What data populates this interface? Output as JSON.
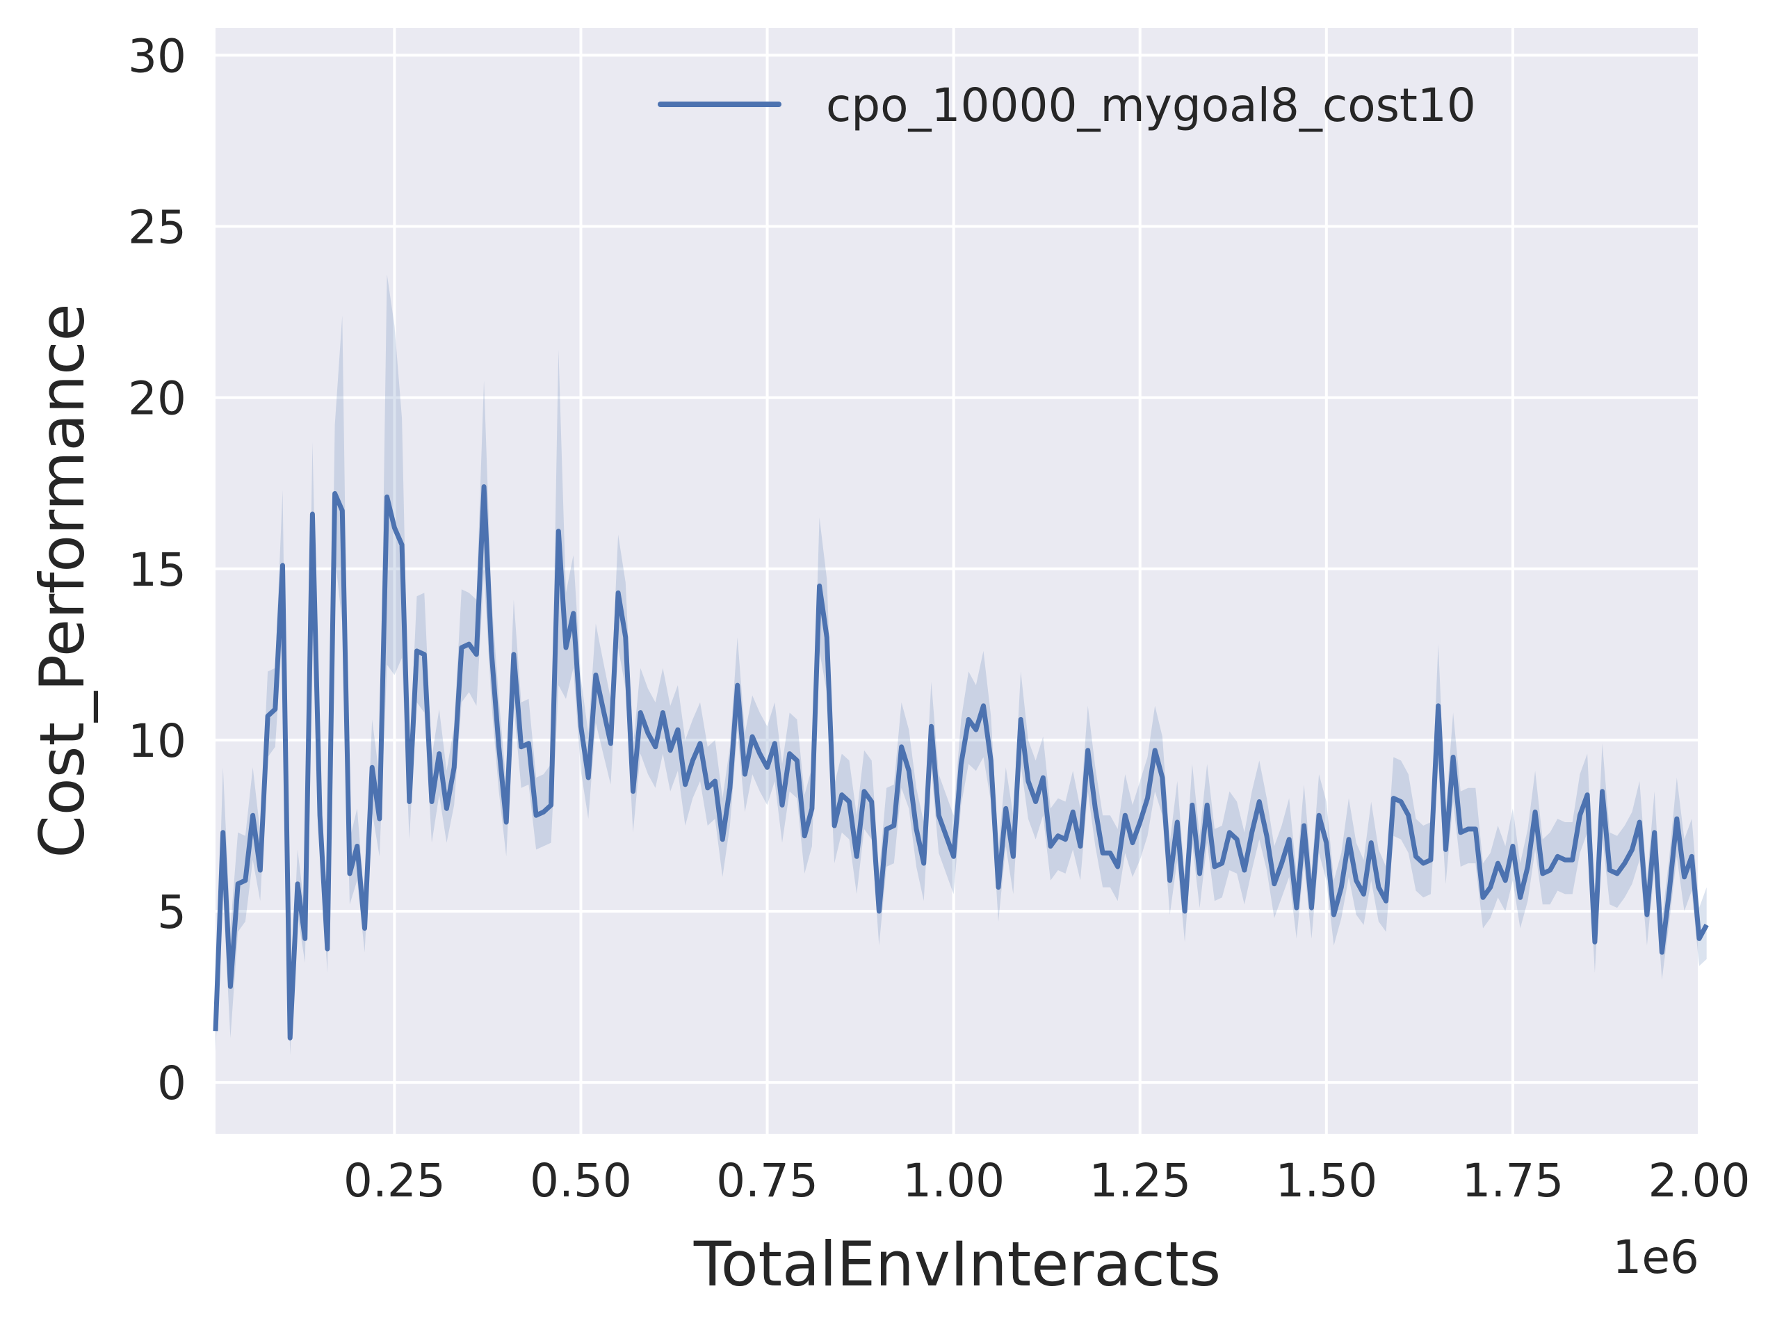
{
  "chart_data": {
    "type": "line",
    "title": "",
    "xlabel": "TotalEnvInteracts",
    "ylabel": "Cost_Performance",
    "x_offset_label": "1e6",
    "xlim": [
      10000,
      2000000
    ],
    "ylim": [
      -1.5,
      30.8
    ],
    "x_ticks": [
      0.25,
      0.5,
      0.75,
      1.0,
      1.25,
      1.5,
      1.75,
      2.0
    ],
    "x_tick_labels": [
      "0.25",
      "0.50",
      "0.75",
      "1.00",
      "1.25",
      "1.50",
      "1.75",
      "2.00"
    ],
    "y_ticks": [
      0,
      5,
      10,
      15,
      20,
      25,
      30
    ],
    "y_tick_labels": [
      "0",
      "5",
      "10",
      "15",
      "20",
      "25",
      "30"
    ],
    "grid": true,
    "legend_position": "top-right",
    "colors": {
      "line": "#4c72b0",
      "band": "#4c72b0",
      "background": "#eaeaf2",
      "grid": "#ffffff"
    },
    "series": [
      {
        "name": "cpo_10000_mygoal8_cost10",
        "x_step": 10000,
        "x_start": 10000,
        "values": [
          1.5,
          7.3,
          2.8,
          5.8,
          5.9,
          7.8,
          6.2,
          10.7,
          10.9,
          15.1,
          1.3,
          5.8,
          4.2,
          16.6,
          7.8,
          3.9,
          17.2,
          16.7,
          6.1,
          6.9,
          4.5,
          9.2,
          7.7,
          17.1,
          16.2,
          15.7,
          8.2,
          12.6,
          12.5,
          8.2,
          9.6,
          8.0,
          9.2,
          12.7,
          12.8,
          12.5,
          17.4,
          12.6,
          9.8,
          7.6,
          12.5,
          9.8,
          9.9,
          7.8,
          7.9,
          8.1,
          16.1,
          12.7,
          13.7,
          10.4,
          8.9,
          11.9,
          10.9,
          9.9,
          14.3,
          13.0,
          8.5,
          10.8,
          10.2,
          9.8,
          10.8,
          9.7,
          10.3,
          8.7,
          9.4,
          9.9,
          8.6,
          8.8,
          7.1,
          8.6,
          11.6,
          9.0,
          10.1,
          9.6,
          9.2,
          9.9,
          8.1,
          9.6,
          9.4,
          7.2,
          8.0,
          14.5,
          13.0,
          7.5,
          8.4,
          8.2,
          6.6,
          8.5,
          8.2,
          5.0,
          7.4,
          7.5,
          9.8,
          9.1,
          7.4,
          6.4,
          10.4,
          7.8,
          7.2,
          6.6,
          9.3,
          10.6,
          10.3,
          11.0,
          9.4,
          5.7,
          8.0,
          6.6,
          10.6,
          8.8,
          8.2,
          8.9,
          6.9,
          7.2,
          7.1,
          7.9,
          6.9,
          9.7,
          8.0,
          6.7,
          6.7,
          6.3,
          7.8,
          7.0,
          7.6,
          8.3,
          9.7,
          8.9,
          5.9,
          7.6,
          5.0,
          8.1,
          6.1,
          8.1,
          6.3,
          6.4,
          7.3,
          7.1,
          6.2,
          7.3,
          8.2,
          7.2,
          5.8,
          6.4,
          7.1,
          5.1,
          7.5,
          5.1,
          7.8,
          7.0,
          4.9,
          5.7,
          7.1,
          5.9,
          5.5,
          7.0,
          5.7,
          5.3,
          8.3,
          8.2,
          7.8,
          6.6,
          6.4,
          6.5,
          11.0,
          6.8,
          9.5,
          7.3,
          7.4,
          7.4,
          5.4,
          5.7,
          6.4,
          5.9,
          6.9,
          5.4,
          6.3,
          7.9,
          6.1,
          6.2,
          6.6,
          6.5,
          6.5,
          7.8,
          8.4,
          4.1,
          8.5,
          6.2,
          6.1,
          6.4,
          6.8,
          7.6,
          4.9,
          7.3,
          3.8,
          5.6,
          7.7,
          6.0,
          6.6,
          4.2,
          4.6
        ],
        "lower": [
          0.9,
          5.6,
          1.3,
          4.4,
          4.7,
          6.5,
          5.3,
          9.5,
          9.8,
          13.2,
          0.8,
          4.9,
          3.5,
          14.7,
          6.6,
          3.2,
          15.4,
          13.4,
          5.2,
          5.9,
          3.8,
          7.9,
          6.6,
          12.2,
          11.9,
          12.4,
          7.1,
          11.1,
          10.8,
          7.0,
          8.4,
          7.0,
          8.1,
          11.1,
          11.4,
          11.0,
          14.9,
          11.1,
          8.5,
          6.6,
          11.0,
          8.6,
          8.7,
          6.8,
          6.9,
          7.0,
          11.6,
          11.2,
          12.1,
          9.1,
          7.7,
          10.5,
          9.6,
          8.7,
          12.7,
          11.5,
          7.3,
          9.6,
          9.0,
          8.6,
          9.6,
          8.5,
          9.1,
          7.5,
          8.3,
          8.8,
          7.5,
          7.7,
          6.0,
          7.5,
          10.3,
          7.9,
          9.0,
          8.5,
          8.1,
          8.8,
          7.0,
          8.5,
          8.3,
          6.1,
          6.9,
          12.6,
          11.4,
          6.4,
          7.3,
          7.1,
          5.5,
          7.4,
          7.1,
          4.0,
          6.3,
          6.4,
          8.6,
          8.0,
          6.3,
          5.3,
          9.2,
          6.7,
          6.1,
          5.5,
          8.1,
          9.3,
          9.1,
          9.5,
          8.2,
          4.7,
          6.9,
          5.5,
          9.3,
          7.7,
          7.1,
          7.8,
          5.9,
          6.2,
          6.1,
          6.8,
          5.9,
          8.5,
          6.9,
          5.7,
          5.7,
          5.3,
          6.7,
          6.0,
          6.5,
          7.2,
          8.5,
          7.8,
          4.9,
          6.5,
          4.1,
          7.0,
          5.1,
          7.0,
          5.3,
          5.4,
          6.2,
          6.1,
          5.2,
          6.2,
          7.1,
          6.2,
          4.8,
          5.4,
          6.0,
          4.2,
          6.4,
          4.2,
          6.7,
          5.9,
          4.0,
          4.8,
          6.0,
          4.9,
          4.6,
          5.9,
          4.7,
          4.4,
          7.2,
          7.1,
          6.7,
          5.6,
          5.4,
          5.5,
          9.3,
          5.8,
          8.2,
          6.3,
          6.4,
          6.4,
          4.5,
          4.8,
          5.4,
          5.0,
          5.9,
          4.5,
          5.3,
          6.8,
          5.2,
          5.2,
          5.6,
          5.5,
          5.5,
          6.7,
          7.3,
          3.2,
          7.2,
          5.2,
          5.1,
          5.4,
          5.8,
          6.5,
          4.0,
          6.2,
          3.0,
          4.7,
          6.6,
          5.0,
          5.6,
          3.4,
          3.6
        ],
        "upper": [
          2.2,
          9.2,
          4.5,
          7.3,
          7.2,
          9.2,
          7.3,
          12.0,
          12.1,
          17.3,
          1.9,
          6.8,
          5.0,
          18.7,
          9.1,
          4.7,
          19.2,
          22.4,
          7.1,
          8.0,
          5.3,
          10.6,
          8.9,
          23.6,
          22.1,
          19.4,
          9.4,
          14.2,
          14.3,
          9.5,
          10.9,
          9.1,
          10.4,
          14.4,
          14.3,
          14.1,
          20.5,
          14.2,
          11.2,
          8.7,
          14.1,
          11.1,
          11.2,
          8.9,
          9.0,
          9.3,
          21.4,
          14.3,
          15.4,
          11.8,
          10.2,
          13.4,
          12.3,
          11.2,
          16.0,
          14.6,
          9.8,
          12.1,
          11.5,
          11.1,
          12.1,
          11.0,
          11.6,
          10.0,
          10.6,
          11.1,
          9.8,
          10.0,
          8.3,
          9.8,
          13.0,
          10.2,
          11.3,
          10.8,
          10.4,
          11.1,
          9.3,
          10.8,
          10.6,
          8.4,
          9.2,
          16.5,
          14.7,
          8.7,
          9.6,
          9.4,
          7.8,
          9.7,
          9.4,
          6.1,
          8.6,
          8.7,
          11.1,
          10.3,
          8.6,
          7.6,
          11.7,
          9.0,
          8.4,
          7.8,
          10.6,
          12.0,
          11.6,
          12.6,
          10.7,
          6.8,
          9.2,
          7.8,
          12.0,
          10.0,
          9.4,
          10.1,
          8.0,
          8.3,
          8.2,
          9.1,
          8.0,
          11.0,
          9.2,
          7.8,
          7.8,
          7.4,
          9.0,
          8.1,
          8.8,
          9.5,
          11.0,
          10.1,
          7.0,
          8.8,
          6.0,
          9.3,
          7.2,
          9.3,
          7.4,
          7.5,
          8.5,
          8.2,
          7.3,
          8.5,
          9.4,
          8.3,
          6.9,
          7.5,
          8.3,
          6.1,
          8.7,
          6.1,
          9.0,
          8.2,
          5.9,
          6.7,
          8.3,
          7.0,
          6.5,
          8.2,
          6.8,
          6.3,
          9.5,
          9.4,
          9.0,
          7.7,
          7.5,
          7.6,
          12.8,
          7.9,
          10.8,
          8.5,
          8.6,
          8.6,
          6.4,
          6.7,
          7.5,
          6.9,
          8.0,
          6.4,
          7.4,
          9.1,
          7.1,
          7.3,
          7.7,
          7.6,
          7.6,
          9.0,
          9.6,
          5.1,
          9.9,
          7.3,
          7.2,
          7.5,
          7.9,
          8.8,
          5.9,
          8.5,
          4.7,
          6.6,
          8.9,
          7.1,
          7.7,
          5.1,
          5.7
        ]
      }
    ]
  }
}
